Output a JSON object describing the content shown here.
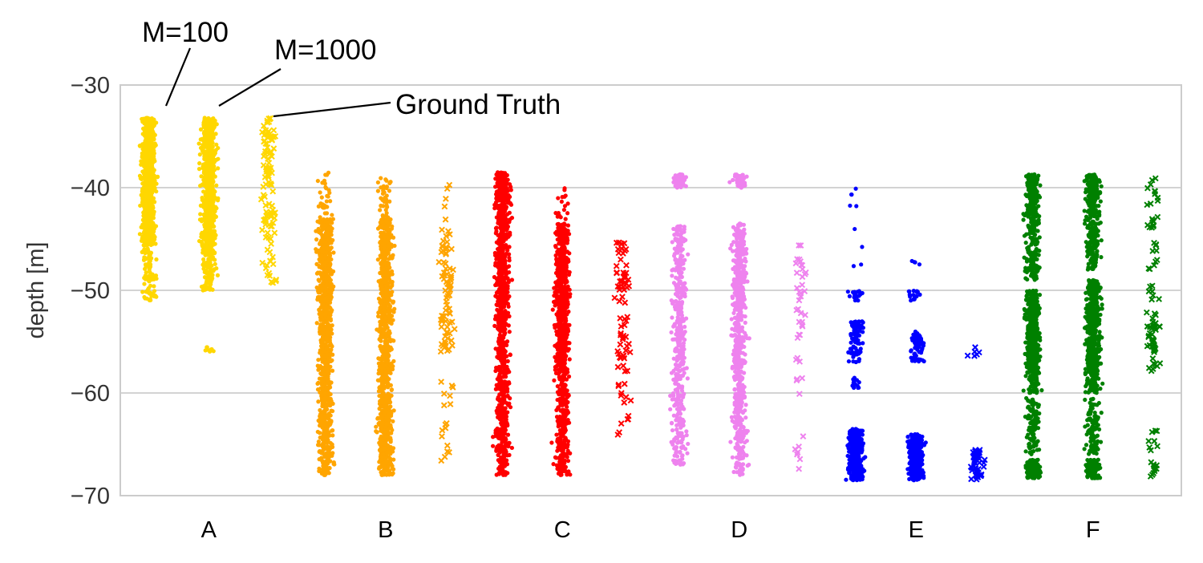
{
  "chart_data": {
    "type": "scatter",
    "title": "",
    "xlabel": "",
    "ylabel": "depth [m]",
    "ylim": [
      -70,
      -30
    ],
    "yticks": [
      -30,
      -40,
      -50,
      -60,
      -70
    ],
    "ytick_labels": [
      "−30",
      "−40",
      "−50",
      "−60",
      "−70"
    ],
    "categories": [
      "A",
      "B",
      "C",
      "D",
      "E",
      "F"
    ],
    "grid": true,
    "series": [
      {
        "name": "M=100",
        "marker": "dot"
      },
      {
        "name": "M=1000",
        "marker": "dot"
      },
      {
        "name": "Ground Truth",
        "marker": "x"
      }
    ],
    "groups": [
      {
        "category": "A",
        "color": "#FFD700",
        "strips": [
          {
            "series": "M=100",
            "count": 900,
            "segments": [
              [
                -33.2,
                -45.5,
                0.9
              ],
              [
                -45.5,
                -51,
                0.1
              ]
            ]
          },
          {
            "series": "M=1000",
            "count": 900,
            "segments": [
              [
                -33.2,
                -46.5,
                0.9
              ],
              [
                -46.5,
                -50,
                0.09
              ],
              [
                -55.5,
                -56,
                0.01
              ]
            ]
          },
          {
            "series": "Ground Truth",
            "count": 110,
            "segments": [
              [
                -33.2,
                -45,
                0.85
              ],
              [
                -45,
                -50,
                0.15
              ]
            ]
          }
        ]
      },
      {
        "category": "B",
        "color": "#FFA500",
        "strips": [
          {
            "series": "M=100",
            "count": 1000,
            "segments": [
              [
                -38.5,
                -43,
                0.03
              ],
              [
                -43,
                -55,
                0.55
              ],
              [
                -55,
                -68,
                0.42
              ]
            ]
          },
          {
            "series": "M=1000",
            "count": 1000,
            "segments": [
              [
                -39,
                -43,
                0.04
              ],
              [
                -43,
                -60,
                0.6
              ],
              [
                -60,
                -68,
                0.36
              ]
            ]
          },
          {
            "series": "Ground Truth",
            "count": 100,
            "segments": [
              [
                -39,
                -44,
                0.05
              ],
              [
                -44,
                -56,
                0.78
              ],
              [
                -58,
                -67,
                0.17
              ]
            ]
          }
        ]
      },
      {
        "category": "C",
        "color": "#FF0000",
        "strips": [
          {
            "series": "M=100",
            "count": 1000,
            "segments": [
              [
                -38.5,
                -53,
                0.6
              ],
              [
                -53,
                -68,
                0.4
              ]
            ]
          },
          {
            "series": "M=1000",
            "count": 900,
            "segments": [
              [
                -40,
                -43.5,
                0.02
              ],
              [
                -43.5,
                -58,
                0.7
              ],
              [
                -58,
                -68,
                0.28
              ]
            ]
          },
          {
            "series": "Ground Truth",
            "count": 80,
            "segments": [
              [
                -45,
                -58,
                0.82
              ],
              [
                -59,
                -64.5,
                0.18
              ]
            ]
          }
        ]
      },
      {
        "category": "D",
        "color": "#EE82EE",
        "strips": [
          {
            "series": "M=100",
            "count": 500,
            "segments": [
              [
                -38.7,
                -40,
                0.1
              ],
              [
                -43.7,
                -58,
                0.6
              ],
              [
                -58,
                -67,
                0.3
              ]
            ]
          },
          {
            "series": "M=1000",
            "count": 700,
            "segments": [
              [
                -38.7,
                -40,
                0.08
              ],
              [
                -43.5,
                -58,
                0.6
              ],
              [
                -58,
                -68,
                0.32
              ]
            ]
          },
          {
            "series": "Ground Truth",
            "count": 45,
            "segments": [
              [
                -45,
                -55,
                0.7
              ],
              [
                -56,
                -68,
                0.3
              ]
            ]
          }
        ]
      },
      {
        "category": "E",
        "color": "#0000FF",
        "strips": [
          {
            "series": "M=100",
            "count": 450,
            "segments": [
              [
                -40,
                -48,
                0.02
              ],
              [
                -50,
                -51,
                0.04
              ],
              [
                -53,
                -57,
                0.18
              ],
              [
                -58.5,
                -59.5,
                0.03
              ],
              [
                -63.5,
                -68.5,
                0.73
              ]
            ]
          },
          {
            "series": "M=1000",
            "count": 420,
            "segments": [
              [
                -47,
                -47.5,
                0.01
              ],
              [
                -50,
                -51,
                0.04
              ],
              [
                -54,
                -57,
                0.15
              ],
              [
                -64,
                -68.5,
                0.8
              ]
            ]
          },
          {
            "series": "Ground Truth",
            "count": 55,
            "segments": [
              [
                -55.5,
                -57,
                0.1
              ],
              [
                -65.5,
                -68.5,
                0.9
              ]
            ]
          }
        ]
      },
      {
        "category": "F",
        "color": "#008000",
        "strips": [
          {
            "series": "M=100",
            "count": 1100,
            "segments": [
              [
                -38.7,
                -41,
                0.12
              ],
              [
                -41,
                -49,
                0.2
              ],
              [
                -50,
                -58,
                0.4
              ],
              [
                -58,
                -60,
                0.05
              ],
              [
                -60.5,
                -66,
                0.1
              ],
              [
                -66.5,
                -68.3,
                0.13
              ]
            ]
          },
          {
            "series": "M=1000",
            "count": 1100,
            "segments": [
              [
                -38.7,
                -41,
                0.12
              ],
              [
                -41,
                -48,
                0.18
              ],
              [
                -49,
                -58,
                0.42
              ],
              [
                -58,
                -60,
                0.06
              ],
              [
                -60.5,
                -66,
                0.1
              ],
              [
                -66.5,
                -68.3,
                0.12
              ]
            ]
          },
          {
            "series": "Ground Truth",
            "count": 100,
            "segments": [
              [
                -38.7,
                -44,
                0.2
              ],
              [
                -45,
                -48,
                0.1
              ],
              [
                -49.5,
                -51,
                0.07
              ],
              [
                -52,
                -58,
                0.45
              ],
              [
                -63,
                -66,
                0.08
              ],
              [
                -66.5,
                -68.3,
                0.1
              ]
            ]
          }
        ]
      }
    ],
    "annotations": [
      {
        "text": "M=100",
        "target": "A.M=100"
      },
      {
        "text": "M=1000",
        "target": "A.M=1000"
      },
      {
        "text": "Ground Truth",
        "target": "A.Ground Truth"
      }
    ]
  }
}
